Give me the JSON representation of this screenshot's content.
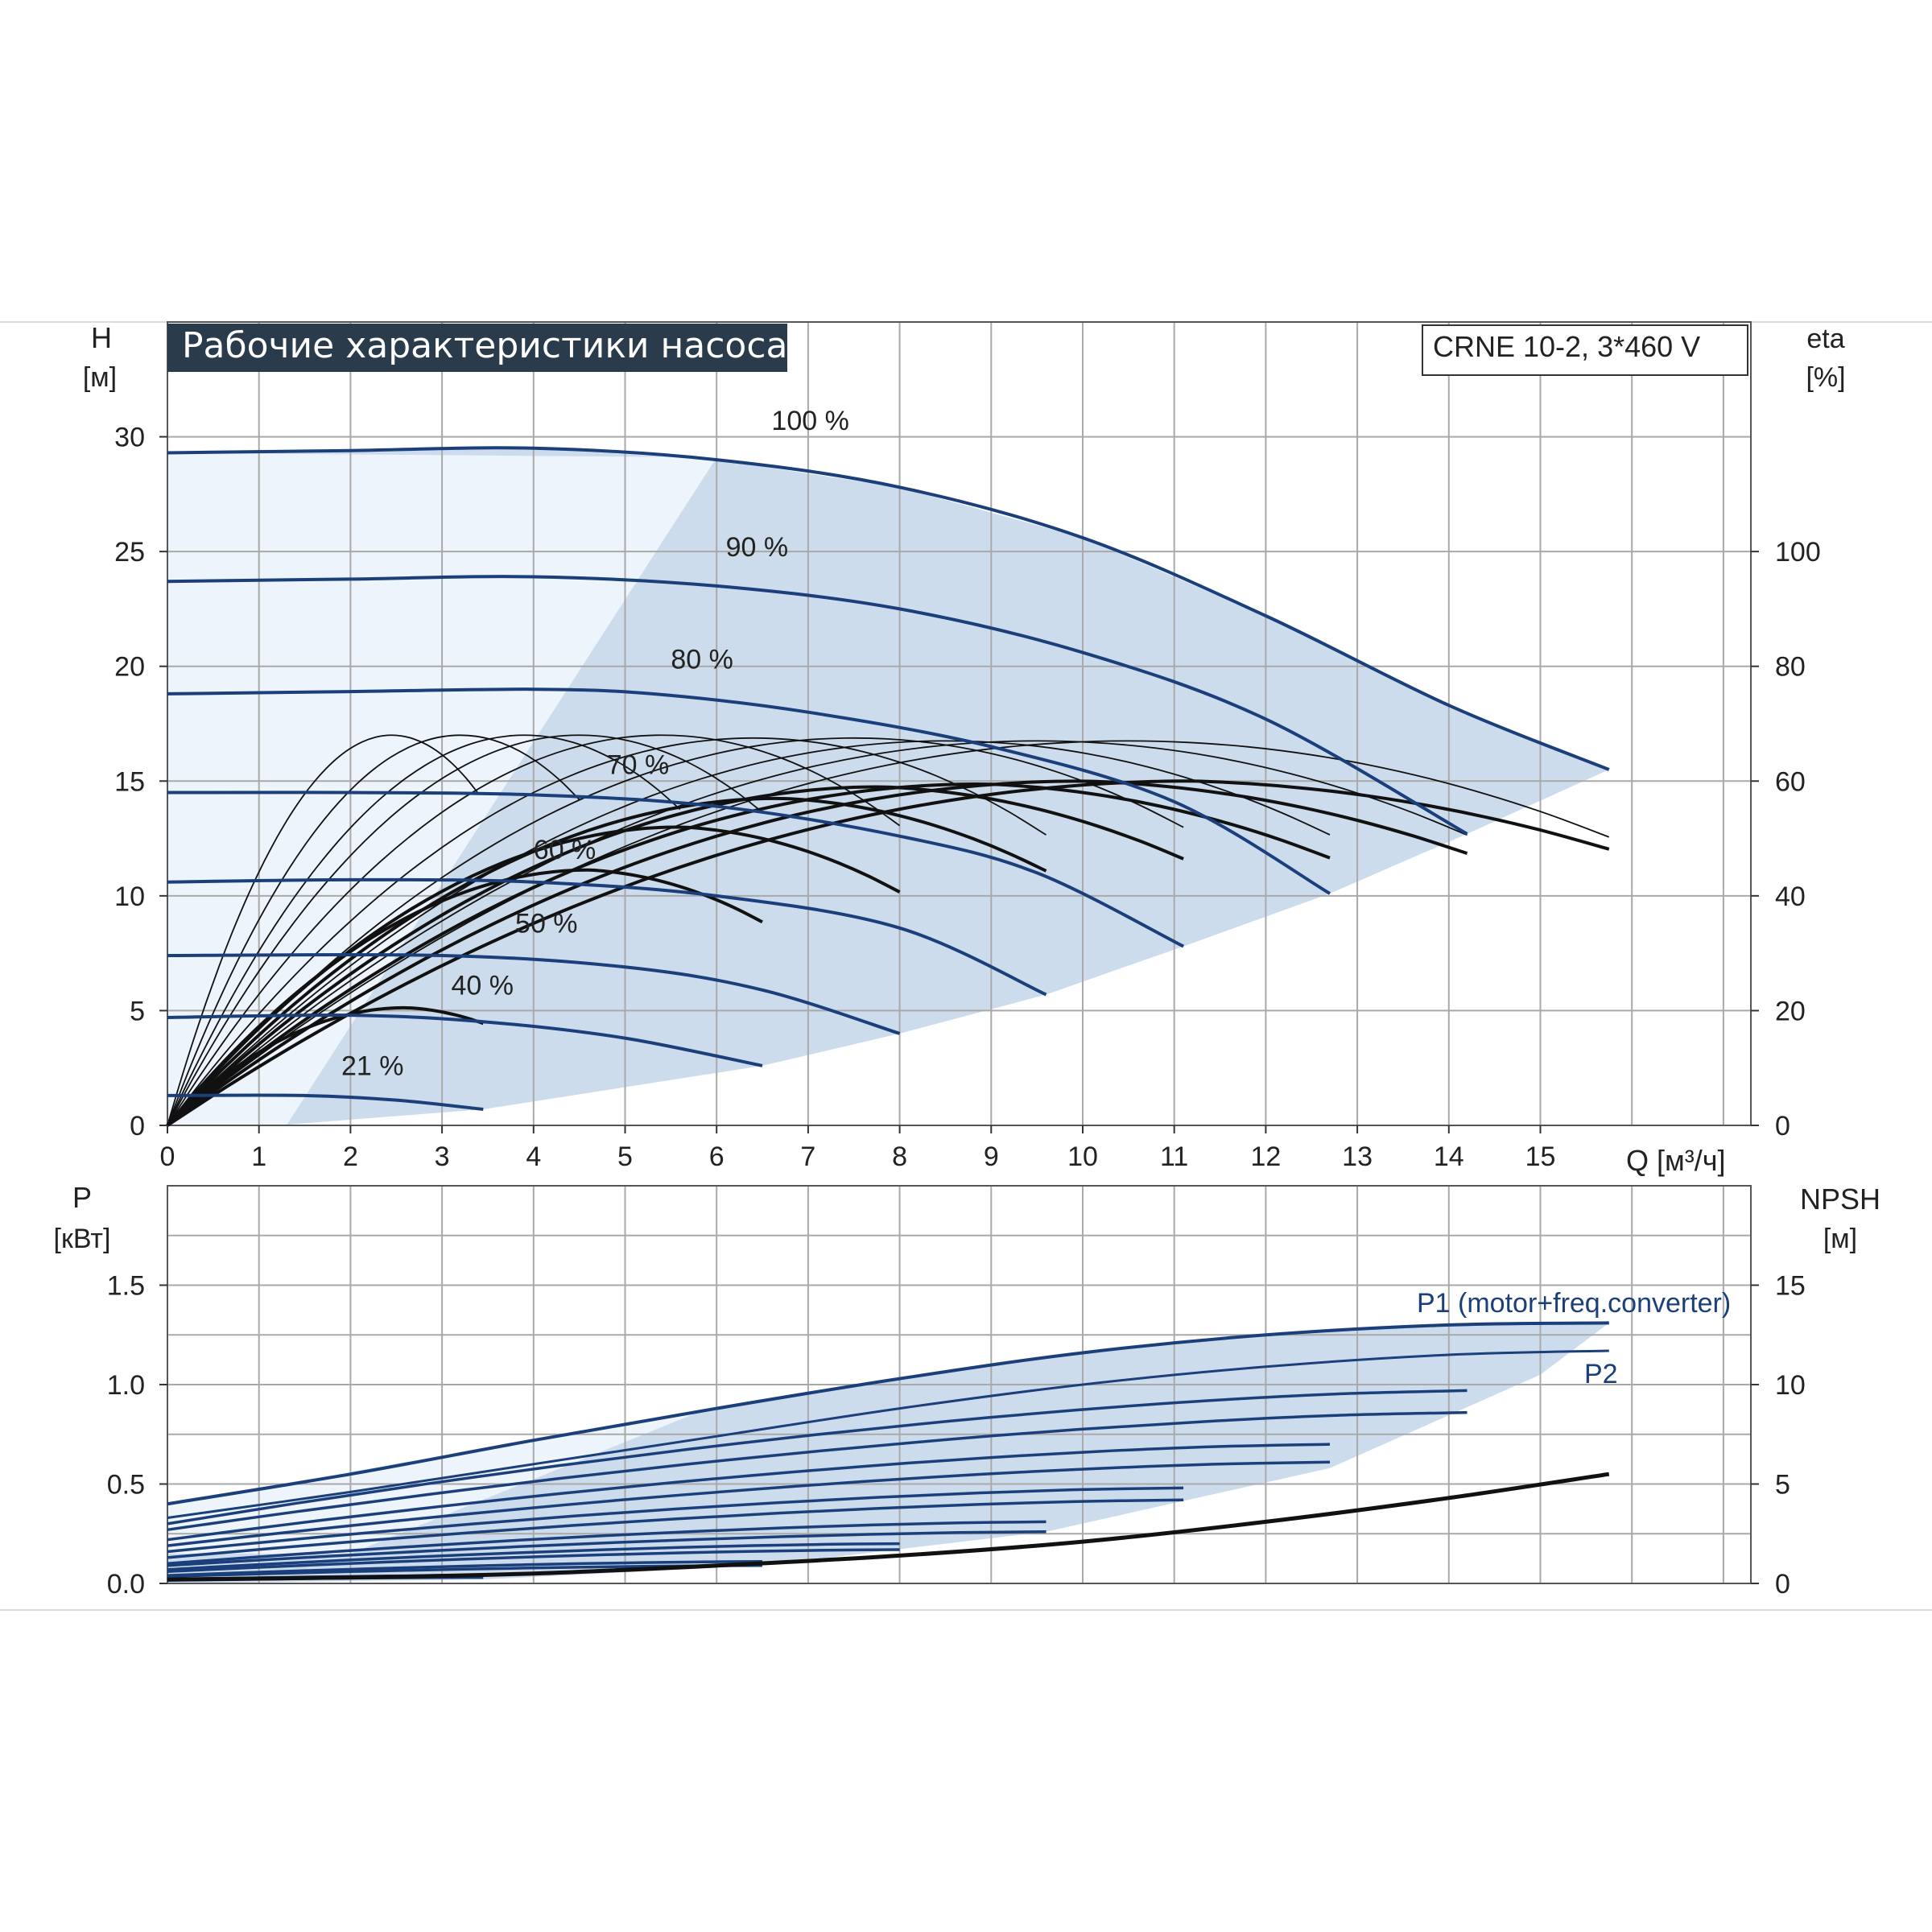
{
  "chart_data": [
    {
      "id": "head",
      "type": "line",
      "title": "Рабочие характеристики насоса",
      "model_label": "CRNE 10-2, 3*460 V",
      "ylabel": "H",
      "yunit": "[м]",
      "y2label": "eta",
      "y2unit": "[%]",
      "xlabel": "Q [м³/ч]",
      "xlim": [
        0,
        17.3
      ],
      "ylim": [
        0,
        35
      ],
      "y2lim": [
        0,
        140
      ],
      "xticks": [
        0,
        1,
        2,
        3,
        4,
        5,
        6,
        7,
        8,
        9,
        10,
        11,
        12,
        13,
        14,
        15
      ],
      "yticks": [
        0,
        5,
        10,
        15,
        20,
        25,
        30
      ],
      "y2ticks": [
        0,
        20,
        40,
        60,
        80,
        100
      ],
      "grid": true,
      "colors": {
        "speed_curve": "#1a3f7a",
        "eta_curve": "#111111",
        "range_fill": "#c4d6ea",
        "title_bg": "#2a3b4c"
      },
      "speed_curves": [
        {
          "name": "100 %",
          "label_at": [
            6.6,
            30.3
          ],
          "x": [
            0,
            2,
            4,
            6,
            8,
            10,
            12,
            14,
            15.75
          ],
          "y": [
            29.3,
            29.4,
            29.5,
            29.0,
            27.8,
            25.6,
            22.2,
            18.3,
            15.5
          ]
        },
        {
          "name": "90 %",
          "label_at": [
            6.1,
            24.8
          ],
          "x": [
            0,
            2,
            4,
            6,
            8,
            10,
            12,
            14.2
          ],
          "y": [
            23.7,
            23.8,
            23.9,
            23.5,
            22.5,
            20.6,
            17.7,
            12.7
          ]
        },
        {
          "name": "80 %",
          "label_at": [
            5.5,
            19.9
          ],
          "x": [
            0,
            2,
            4,
            5.3,
            7,
            9,
            11,
            12.7
          ],
          "y": [
            18.8,
            18.9,
            19.0,
            18.8,
            18.0,
            16.5,
            14.1,
            10.1
          ]
        },
        {
          "name": "70 %",
          "label_at": [
            4.8,
            15.3
          ],
          "x": [
            0,
            2,
            4,
            6,
            8,
            9.5,
            11.1
          ],
          "y": [
            14.5,
            14.5,
            14.4,
            13.9,
            12.6,
            11.0,
            7.8
          ]
        },
        {
          "name": "60 %",
          "label_at": [
            4.0,
            11.6
          ],
          "x": [
            0,
            2,
            4,
            6,
            8,
            9.6
          ],
          "y": [
            10.6,
            10.7,
            10.6,
            10.0,
            8.6,
            5.7
          ]
        },
        {
          "name": "50 %",
          "label_at": [
            3.8,
            8.4
          ],
          "x": [
            0,
            3,
            5,
            6.5,
            8
          ],
          "y": [
            7.4,
            7.4,
            6.9,
            5.9,
            4.0
          ]
        },
        {
          "name": "40 %",
          "label_at": [
            3.1,
            5.7
          ],
          "x": [
            0,
            2,
            3.5,
            5,
            6.5
          ],
          "y": [
            4.7,
            4.8,
            4.5,
            3.8,
            2.6
          ]
        },
        {
          "name": "21 %",
          "label_at": [
            1.9,
            2.2
          ],
          "x": [
            0,
            1.5,
            2.5,
            3.45
          ],
          "y": [
            1.3,
            1.3,
            1.1,
            0.7
          ]
        }
      ],
      "eta_curves": [
        {
          "q_end": 3.4,
          "q_peak": 2.45,
          "peak": 68
        },
        {
          "q_end": 4.5,
          "q_peak": 3.2,
          "peak": 68
        },
        {
          "q_end": 5.6,
          "q_peak": 3.9,
          "peak": 68
        },
        {
          "q_end": 6.5,
          "q_peak": 4.5,
          "peak": 68
        },
        {
          "q_end": 8.0,
          "q_peak": 5.4,
          "peak": 68
        },
        {
          "q_end": 9.6,
          "q_peak": 6.4,
          "peak": 67.5
        },
        {
          "q_end": 11.1,
          "q_peak": 7.5,
          "peak": 67.5
        },
        {
          "q_end": 12.7,
          "q_peak": 8.5,
          "peak": 67
        },
        {
          "q_end": 14.2,
          "q_peak": 9.5,
          "peak": 67
        },
        {
          "q_end": 15.75,
          "q_peak": 10.5,
          "peak": 67
        }
      ],
      "eta_main_curves": [
        {
          "q_end": 3.45,
          "q_peak": 2.6,
          "peak": 20.5
        },
        {
          "q_end": 6.5,
          "q_peak": 4.6,
          "peak": 44.5
        },
        {
          "q_end": 8.0,
          "q_peak": 5.6,
          "peak": 52
        },
        {
          "q_end": 9.6,
          "q_peak": 6.7,
          "peak": 57
        },
        {
          "q_end": 11.1,
          "q_peak": 7.8,
          "peak": 59
        },
        {
          "q_end": 12.7,
          "q_peak": 8.9,
          "peak": 59.5
        },
        {
          "q_end": 14.2,
          "q_peak": 10.0,
          "peak": 60
        },
        {
          "q_end": 15.75,
          "q_peak": 11.2,
          "peak": 60
        }
      ]
    },
    {
      "id": "power",
      "type": "line",
      "ylabel": "P",
      "yunit": "[кВт]",
      "y2label": "NPSH",
      "y2unit": "[м]",
      "xlim": [
        0,
        17.3
      ],
      "ylim": [
        0,
        2.0
      ],
      "y2lim": [
        0,
        20
      ],
      "yticks": [
        0.0,
        0.5,
        1.0,
        1.5
      ],
      "ytick_labels": [
        "0.0",
        "0.5",
        "1.0",
        "1.5"
      ],
      "y2ticks": [
        0,
        5,
        10,
        15
      ],
      "grid": true,
      "series_labels": {
        "p1": "P1 (motor+freq.converter)",
        "p2": "P2"
      },
      "p1_max": {
        "x": [
          0,
          2,
          4,
          6,
          8,
          10,
          12,
          14,
          15.75
        ],
        "y": [
          0.4,
          0.55,
          0.72,
          0.88,
          1.03,
          1.16,
          1.25,
          1.3,
          1.31
        ]
      },
      "p2_max": {
        "x": [
          0,
          2,
          4,
          6,
          8,
          10,
          12,
          14,
          15.75
        ],
        "y": [
          0.33,
          0.46,
          0.6,
          0.74,
          0.88,
          1.0,
          1.09,
          1.15,
          1.17
        ]
      },
      "power_curves": [
        {
          "x_end": 14.2,
          "p0": 0.3,
          "p_end": 0.97
        },
        {
          "x_end": 14.2,
          "p0": 0.27,
          "p_end": 0.86
        },
        {
          "x_end": 12.7,
          "p0": 0.22,
          "p_end": 0.7
        },
        {
          "x_end": 12.7,
          "p0": 0.19,
          "p_end": 0.61
        },
        {
          "x_end": 11.1,
          "p0": 0.16,
          "p_end": 0.48
        },
        {
          "x_end": 11.1,
          "p0": 0.13,
          "p_end": 0.42
        },
        {
          "x_end": 9.6,
          "p0": 0.1,
          "p_end": 0.31
        },
        {
          "x_end": 9.6,
          "p0": 0.09,
          "p_end": 0.26
        },
        {
          "x_end": 8.0,
          "p0": 0.07,
          "p_end": 0.2
        },
        {
          "x_end": 8.0,
          "p0": 0.06,
          "p_end": 0.17
        },
        {
          "x_end": 6.5,
          "p0": 0.04,
          "p_end": 0.11
        },
        {
          "x_end": 6.5,
          "p0": 0.035,
          "p_end": 0.09
        },
        {
          "x_end": 3.45,
          "p0": 0.02,
          "p_end": 0.04
        },
        {
          "x_end": 3.45,
          "p0": 0.015,
          "p_end": 0.03
        }
      ],
      "npsh": {
        "x": [
          0,
          2,
          4,
          6,
          8,
          10,
          12,
          14,
          15.75
        ],
        "y": [
          0.2,
          0.3,
          0.5,
          0.9,
          1.4,
          2.1,
          3.1,
          4.3,
          5.5
        ]
      }
    }
  ]
}
